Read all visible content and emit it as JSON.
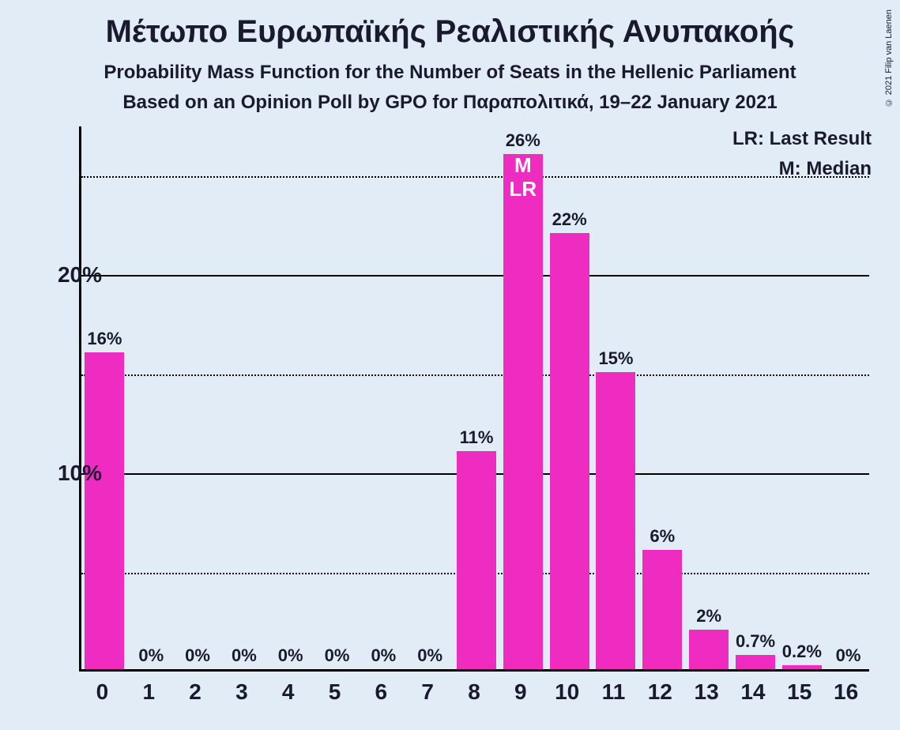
{
  "title": "Μέτωπο Ευρωπαϊκής Ρεαλιστικής Ανυπακοής",
  "subtitle1": "Probability Mass Function for the Number of Seats in the Hellenic Parliament",
  "subtitle2": "Based on an Opinion Poll by GPO for Παραπολιτικά, 19–22 January 2021",
  "copyright": "© 2021 Filip van Laenen",
  "legend": {
    "lr": "LR: Last Result",
    "m": "M: Median"
  },
  "chart": {
    "type": "bar",
    "bar_color": "#ef2cc2",
    "background_color": "#e2ecf6",
    "text_color": "#1a1a2e",
    "axis_color": "#000000",
    "grid_color": "#000000",
    "marker_text_color": "#ffffff",
    "title_fontsize": 40,
    "subtitle_fontsize": 24,
    "label_fontsize": 22,
    "axis_fontsize": 28,
    "bar_width_ratio": 0.85,
    "ylim": [
      0,
      27.5
    ],
    "y_gridlines": [
      {
        "value": 5,
        "style": "dotted",
        "label": ""
      },
      {
        "value": 10,
        "style": "solid",
        "label": "10%"
      },
      {
        "value": 15,
        "style": "dotted",
        "label": ""
      },
      {
        "value": 20,
        "style": "solid",
        "label": "20%"
      },
      {
        "value": 25,
        "style": "dotted",
        "label": ""
      }
    ],
    "categories": [
      "0",
      "1",
      "2",
      "3",
      "4",
      "5",
      "6",
      "7",
      "8",
      "9",
      "10",
      "11",
      "12",
      "13",
      "14",
      "15",
      "16"
    ],
    "values": [
      16,
      0,
      0,
      0,
      0,
      0,
      0,
      0,
      11,
      26,
      22,
      15,
      6,
      2,
      0.7,
      0.2,
      0
    ],
    "value_labels": [
      "16%",
      "0%",
      "0%",
      "0%",
      "0%",
      "0%",
      "0%",
      "0%",
      "11%",
      "26%",
      "22%",
      "15%",
      "6%",
      "2%",
      "0.7%",
      "0.2%",
      "0%"
    ],
    "markers": {
      "9": [
        "M",
        "LR"
      ]
    }
  }
}
